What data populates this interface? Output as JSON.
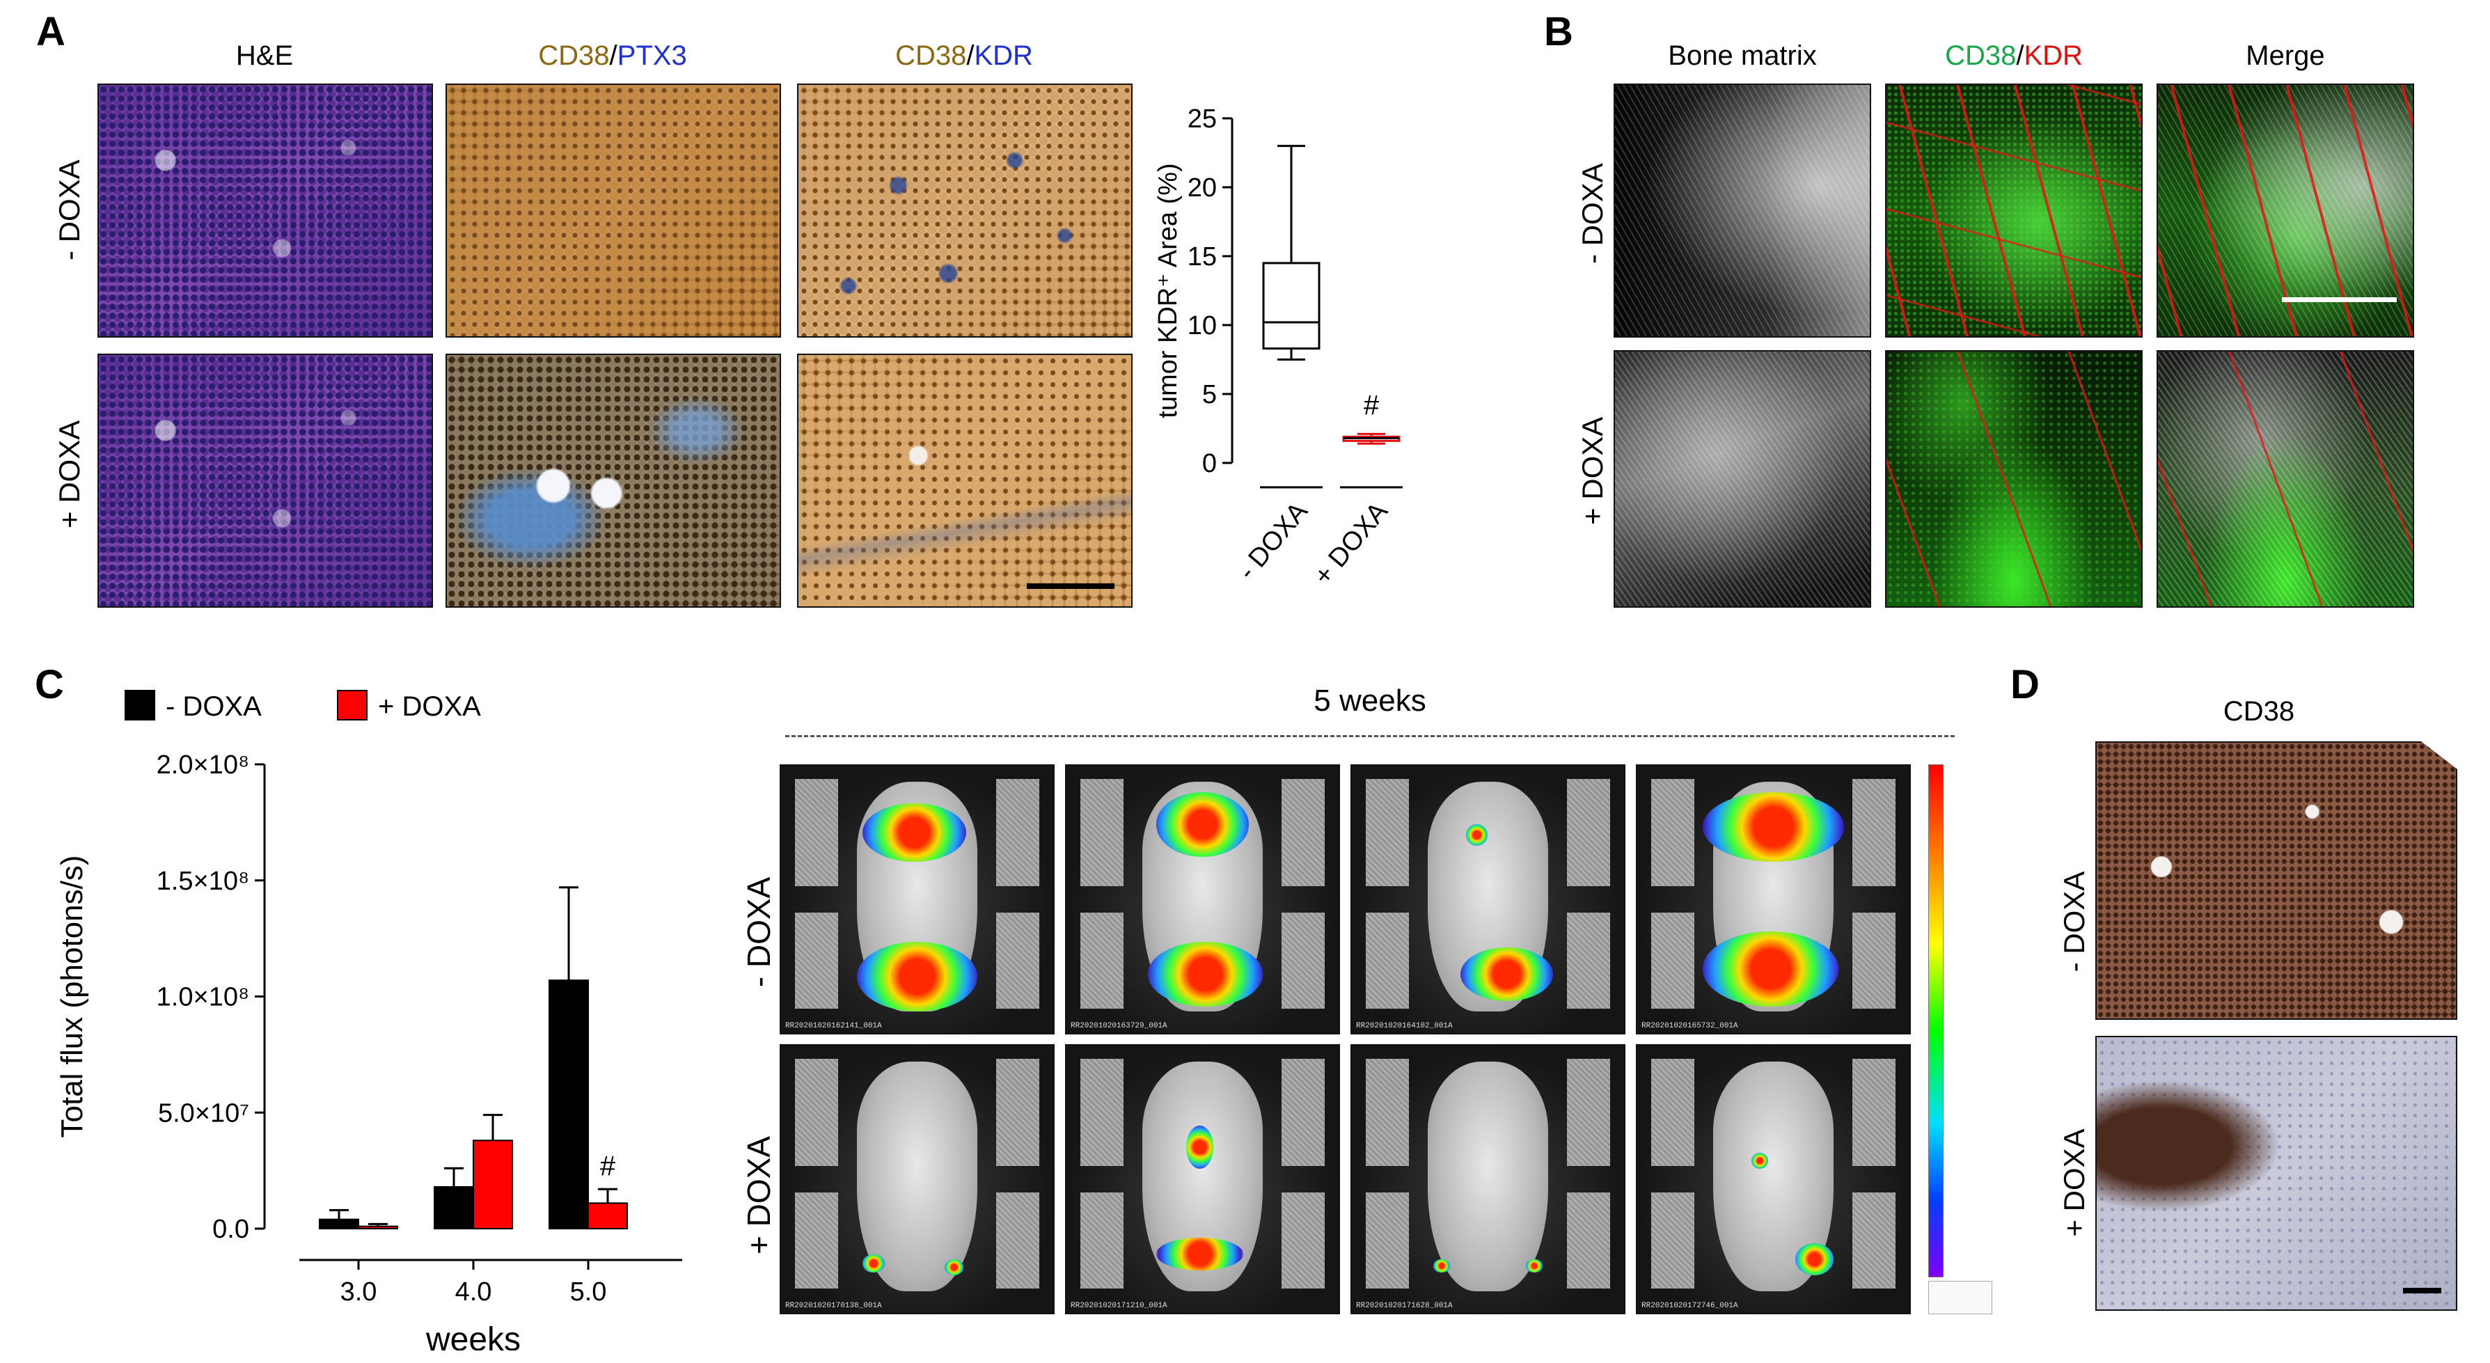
{
  "panels": {
    "A": {
      "letter": "A",
      "col_titles": {
        "he": "H&E",
        "cd38_ptx3": {
          "cd38": "CD38",
          "slash": "/",
          "marker": "PTX3"
        },
        "cd38_kdr": {
          "cd38": "CD38",
          "slash": "/",
          "marker": "KDR"
        }
      },
      "rows": [
        "- DOXA",
        "+ DOXA"
      ]
    },
    "B": {
      "letter": "B",
      "col_titles": {
        "bone": "Bone matrix",
        "fluor": {
          "cd38": "CD38",
          "slash": "/",
          "kdr": "KDR"
        },
        "merge": "Merge"
      },
      "rows": [
        "- DOXA",
        "+ DOXA"
      ]
    },
    "C": {
      "letter": "C",
      "legend": [
        "- DOXA",
        "+ DOXA"
      ],
      "bli_title": "5 weeks",
      "rows": [
        "- DOXA",
        "+ DOXA"
      ],
      "bli_ids_neg": [
        "RR20201020162141_001A",
        "RR20201020163729_001A",
        "RR20201020164102_001A",
        "RR20201020165732_001A"
      ],
      "bli_ids_pos": [
        "RR20201020170138_001A",
        "RR20201020171210_001A",
        "RR20201020171628_001A",
        "RR20201020172746_001A"
      ]
    },
    "D": {
      "letter": "D",
      "title": "CD38",
      "rows": [
        "- DOXA",
        "+ DOXA"
      ]
    }
  },
  "colors": {
    "cd38_brown": "#8B6914",
    "blue_marker": "#1f2fd0",
    "green": "#1aa64a",
    "red": "#e01010",
    "neg_bar": "#000000",
    "pos_bar": "#ff0000"
  },
  "chart_data": [
    {
      "type": "box",
      "ylabel": "tumor KDR⁺ Area (%)",
      "ylim": [
        0,
        25
      ],
      "yticks": [
        0,
        5,
        10,
        15,
        20,
        25
      ],
      "categories": [
        "- DOXA",
        "+ DOXA"
      ],
      "boxes": [
        {
          "name": "- DOXA",
          "min": 7.5,
          "q1": 8.3,
          "median": 10.2,
          "q3": 14.5,
          "max": 23.0,
          "color": "#000000"
        },
        {
          "name": "+ DOXA",
          "min": 1.4,
          "q1": 1.6,
          "median": 1.8,
          "q3": 1.9,
          "max": 2.1,
          "color": "#e01010"
        }
      ],
      "annotation": "#"
    },
    {
      "type": "bar",
      "ylabel": "Total flux (photons/s)",
      "xlabel": "weeks",
      "ylim": [
        0,
        200000000
      ],
      "yticks": [
        {
          "value": 0,
          "label": "0.0"
        },
        {
          "value": 50000000,
          "label": "5.0×10⁷"
        },
        {
          "value": 100000000,
          "label": "1.0×10⁸"
        },
        {
          "value": 150000000,
          "label": "1.5×10⁸"
        },
        {
          "value": 200000000,
          "label": "2.0×10⁸"
        }
      ],
      "categories": [
        "3.0",
        "4.0",
        "5.0"
      ],
      "series": [
        {
          "name": "- DOXA",
          "color": "#000000",
          "values": [
            4000000,
            18000000,
            107000000
          ],
          "errors": [
            4000000,
            8000000,
            40000000
          ]
        },
        {
          "name": "+ DOXA",
          "color": "#ff0000",
          "values": [
            1000000,
            38000000,
            11000000
          ],
          "errors": [
            1000000,
            11000000,
            6000000
          ]
        }
      ],
      "annotation": "#"
    }
  ]
}
